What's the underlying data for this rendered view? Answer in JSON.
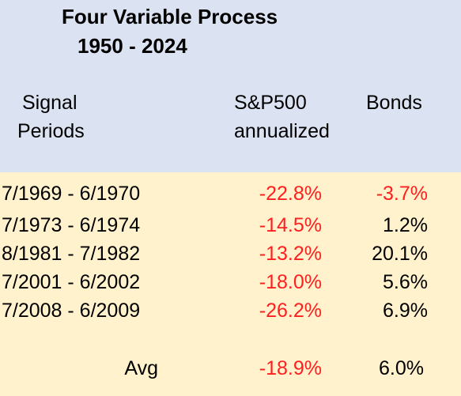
{
  "header": {
    "title": "Four Variable Process",
    "subtitle": "1950 - 2024"
  },
  "table": {
    "columns": [
      [
        "Signal",
        "Periods"
      ],
      [
        "S&P500",
        "annualized"
      ],
      [
        "Bonds"
      ]
    ],
    "rows": [
      [
        "7/1969 - 6/1970",
        "-22.8%",
        "-3.7%"
      ],
      [
        "7/1973 - 6/1974",
        "-14.5%",
        "1.2%"
      ],
      [
        "8/1981 - 7/1982",
        "-13.2%",
        "20.1%"
      ],
      [
        "7/2001 - 6/2002",
        "-18.0%",
        "5.6%"
      ],
      [
        "7/2008 - 6/2009",
        "-26.2%",
        "6.9%"
      ]
    ],
    "average": [
      "Avg",
      "-18.9%",
      "6.0%"
    ]
  }
}
